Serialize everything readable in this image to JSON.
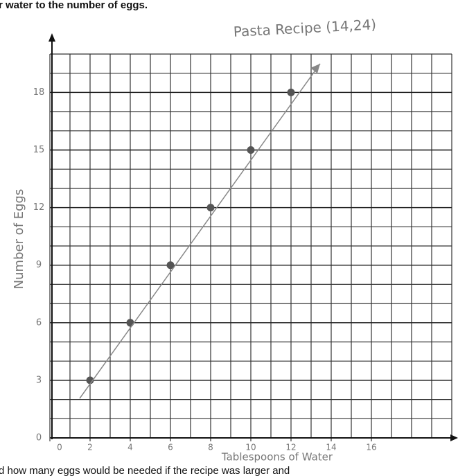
{
  "header_text": "r water to the number of eggs.",
  "footer_text": "d how many eggs would be needed if the recipe was larger and",
  "chart_data": {
    "type": "scatter",
    "title": "Pasta Recipe (14,24)",
    "x_label": "Tablespoons of Water",
    "y_label": "Number of Eggs",
    "x": [
      2,
      4,
      6,
      8,
      10,
      12
    ],
    "values": [
      3,
      6,
      9,
      12,
      15,
      18
    ],
    "color": "#555555",
    "xlim": [
      0,
      20
    ],
    "ylim": [
      0,
      20
    ],
    "xticks": [
      0,
      2,
      4,
      6,
      8,
      10,
      12,
      14,
      16
    ],
    "yticks": [
      0,
      3,
      6,
      9,
      12,
      15,
      18
    ],
    "grid": true
  }
}
